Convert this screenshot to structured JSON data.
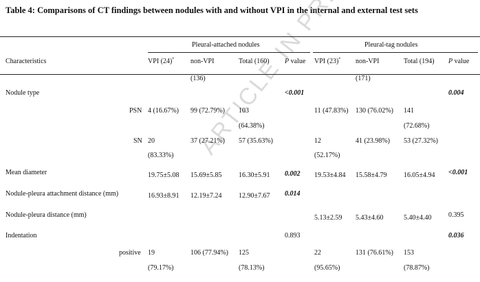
{
  "title": "Table 4: Comparisons of CT findings between nodules with and without VPI in the internal and external test sets",
  "watermark": "ARTICLE IN PRESS",
  "groups": {
    "attached": "Pleural-attached nodules",
    "tag": "Pleural-tag nodules"
  },
  "header": {
    "characteristics": "Characteristics",
    "vpi_a": "VPI (24)",
    "vpi_a_sup": "*",
    "nonvpi_a": "non-VPI",
    "nonvpi_a_n": "(136)",
    "total_a": "Total (160)",
    "p_a_letter": "P",
    "p_a_word": " value",
    "vpi_t": "VPI (23)",
    "vpi_t_sup": "*",
    "nonvpi_t": "non-VPI",
    "nonvpi_t_n": "(171)",
    "total_t": "Total (194)",
    "p_t_letter": "P",
    "p_t_word": " value"
  },
  "rows": {
    "nodule_type": {
      "label": "Nodule type",
      "p_a": "<0.001",
      "p_t": "0.004"
    },
    "psn": {
      "label": "PSN",
      "vpi_a": "4 (16.67%)",
      "nonvpi_a": "99 (72.79%)",
      "total_a_1": "103",
      "total_a_2": "(64.38%)",
      "vpi_t": "11 (47.83%)",
      "nonvpi_t": "130 (76.02%)",
      "total_t_1": "141",
      "total_t_2": "(72.68%)"
    },
    "sn": {
      "label": "SN",
      "vpi_a_1": "20",
      "vpi_a_2": "(83.33%)",
      "nonvpi_a": "37 (27.21%)",
      "total_a": "57 (35.63%)",
      "vpi_t_1": "12",
      "vpi_t_2": "(52.17%)",
      "nonvpi_t": "41 (23.98%)",
      "total_t": "53 (27.32%)"
    },
    "mean_diameter": {
      "label": "Mean diameter",
      "vpi_a": "19.75±5.08",
      "nonvpi_a": "15.69±5.85",
      "total_a": "16.30±5.91",
      "p_a": "0.002",
      "vpi_t": "19.53±4.84",
      "nonvpi_t": "15.58±4.79",
      "total_t": "16.05±4.94",
      "p_t": "<0.001"
    },
    "attach_dist": {
      "label": "Nodule-pleura attachment distance (mm)",
      "vpi_a": "16.93±8.91",
      "nonvpi_a": "12.19±7.24",
      "total_a": "12.90±7.67",
      "p_a": "0.014"
    },
    "pleura_dist": {
      "label": "Nodule-pleura distance (mm)",
      "vpi_t": "5.13±2.59",
      "nonvpi_t": "5.43±4.60",
      "total_t": "5.40±4.40",
      "p_t": "0.395"
    },
    "indentation": {
      "label": "Indentation",
      "p_a": "0.893",
      "p_t": "0.036"
    },
    "positive": {
      "label": "positive",
      "vpi_a_1": "19",
      "vpi_a_2": "(79.17%)",
      "nonvpi_a": "106 (77.94%)",
      "total_a_1": "125",
      "total_a_2": "(78.13%)",
      "vpi_t_1": "22",
      "vpi_t_2": "(95.65%)",
      "nonvpi_t": "131 (76.61%)",
      "total_t_1": "153",
      "total_t_2": "(78.87%)"
    }
  }
}
